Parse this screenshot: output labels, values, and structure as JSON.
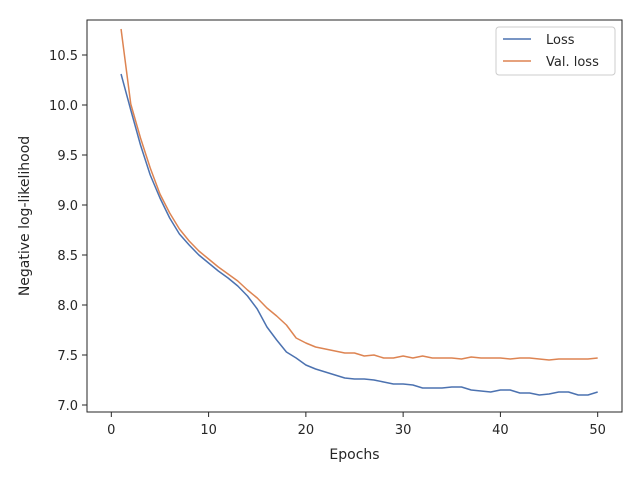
{
  "chart_data": {
    "type": "line",
    "xlabel": "Epochs",
    "ylabel": "Negative log-likelihood",
    "xlim": [
      -2.5,
      52.5
    ],
    "ylim": [
      6.93,
      10.85
    ],
    "xticks": [
      0,
      10,
      20,
      30,
      40,
      50
    ],
    "yticks": [
      7.0,
      7.5,
      8.0,
      8.5,
      9.0,
      9.5,
      10.0,
      10.5
    ],
    "ytick_labels": [
      "7.0",
      "7.5",
      "8.0",
      "8.5",
      "9.0",
      "9.5",
      "10.0",
      "10.5"
    ],
    "grid": false,
    "legend_position": "top-right",
    "x": [
      1,
      2,
      3,
      4,
      5,
      6,
      7,
      8,
      9,
      10,
      11,
      12,
      13,
      14,
      15,
      16,
      17,
      18,
      19,
      20,
      21,
      22,
      23,
      24,
      25,
      26,
      27,
      28,
      29,
      30,
      31,
      32,
      33,
      34,
      35,
      36,
      37,
      38,
      39,
      40,
      41,
      42,
      43,
      44,
      45,
      46,
      47,
      48,
      49,
      50
    ],
    "series": [
      {
        "name": "Loss",
        "color": "#4c72b0",
        "values": [
          10.31,
          9.95,
          9.6,
          9.3,
          9.07,
          8.87,
          8.71,
          8.6,
          8.5,
          8.42,
          8.34,
          8.27,
          8.19,
          8.09,
          7.96,
          7.78,
          7.65,
          7.53,
          7.47,
          7.4,
          7.36,
          7.33,
          7.3,
          7.27,
          7.26,
          7.26,
          7.25,
          7.23,
          7.21,
          7.21,
          7.2,
          7.17,
          7.17,
          7.17,
          7.18,
          7.18,
          7.15,
          7.14,
          7.13,
          7.15,
          7.15,
          7.12,
          7.12,
          7.1,
          7.11,
          7.13,
          7.13,
          7.1,
          7.1,
          7.13
        ]
      },
      {
        "name": "Val. loss",
        "color": "#dd8452",
        "values": [
          10.76,
          10.01,
          9.67,
          9.37,
          9.11,
          8.92,
          8.76,
          8.64,
          8.54,
          8.46,
          8.38,
          8.31,
          8.24,
          8.15,
          8.07,
          7.97,
          7.89,
          7.8,
          7.67,
          7.62,
          7.58,
          7.56,
          7.54,
          7.52,
          7.52,
          7.49,
          7.5,
          7.47,
          7.47,
          7.49,
          7.47,
          7.49,
          7.47,
          7.47,
          7.47,
          7.46,
          7.48,
          7.47,
          7.47,
          7.47,
          7.46,
          7.47,
          7.47,
          7.46,
          7.45,
          7.46,
          7.46,
          7.46,
          7.46,
          7.47
        ]
      }
    ]
  }
}
